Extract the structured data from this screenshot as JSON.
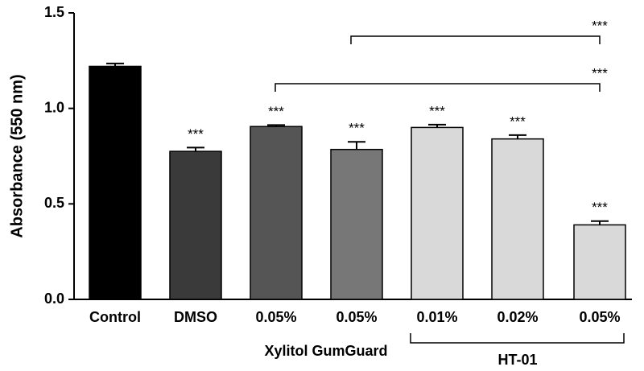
{
  "chart_data": {
    "type": "bar",
    "y_label": "Absorbance (550 nm)",
    "categories": [
      "Control",
      "DMSO",
      "0.05%",
      "0.05%",
      "0.01%",
      "0.02%",
      "0.05%"
    ],
    "values": [
      1.22,
      0.775,
      0.905,
      0.785,
      0.9,
      0.84,
      0.39
    ],
    "errors": [
      0.015,
      0.02,
      0.008,
      0.04,
      0.015,
      0.02,
      0.02
    ],
    "colors": [
      "#000000",
      "#3a3a3a",
      "#555555",
      "#777777",
      "#d9d9d9",
      "#d9d9d9",
      "#d9d9d9"
    ],
    "value_labels": [
      null,
      "***",
      "***",
      "***",
      "***",
      "***",
      "***"
    ],
    "comparisons": [
      "***",
      "***"
    ],
    "groups": [
      "Xylitol GumGuard",
      "HT-01"
    ],
    "ylim": [
      0,
      1.5
    ],
    "yticks": [
      {
        "value": 0,
        "label": "0.0"
      },
      {
        "value": 0.5,
        "label": "0.5"
      },
      {
        "value": 1,
        "label": "1.0"
      },
      {
        "value": 1.5,
        "label": "1.5"
      }
    ]
  }
}
